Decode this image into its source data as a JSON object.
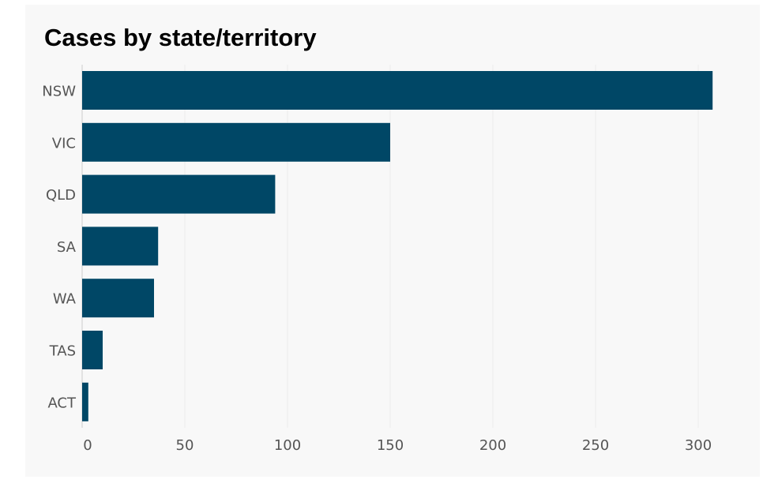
{
  "chart_data": {
    "type": "bar",
    "orientation": "horizontal",
    "title": "Cases by state/territory",
    "xlabel": "",
    "ylabel": "",
    "categories": [
      "NSW",
      "VIC",
      "QLD",
      "SA",
      "WA",
      "TAS",
      "ACT"
    ],
    "values": [
      307,
      150,
      94,
      37,
      35,
      10,
      3
    ],
    "xlim": [
      0,
      310
    ],
    "xticks": [
      0,
      50,
      100,
      150,
      200,
      250,
      300
    ],
    "grid": true,
    "legend": "none",
    "colors": {
      "bar": "#004766",
      "grid": "#ececec",
      "axis": "#cccccc",
      "background": "#f8f8f8"
    }
  }
}
